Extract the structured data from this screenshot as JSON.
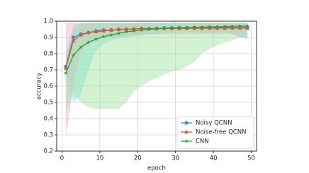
{
  "chart_data": {
    "type": "line",
    "xlabel": "epoch",
    "ylabel": "accuracy",
    "x": [
      1,
      3,
      5,
      7,
      9,
      11,
      13,
      15,
      17,
      19,
      21,
      23,
      25,
      27,
      29,
      31,
      33,
      35,
      37,
      39,
      41,
      43,
      45,
      47,
      49
    ],
    "series": [
      {
        "name": "Noisy QCNN",
        "color": "#3b8fd6",
        "marker": "circle",
        "band_color": "#7fe0ee",
        "values": [
          0.72,
          0.9,
          0.92,
          0.93,
          0.94,
          0.945,
          0.945,
          0.95,
          0.95,
          0.952,
          0.955,
          0.955,
          0.955,
          0.958,
          0.958,
          0.96,
          0.96,
          0.96,
          0.96,
          0.962,
          0.962,
          0.962,
          0.962,
          0.963,
          0.963
        ],
        "band_lower": [
          0.66,
          0.5,
          0.55,
          0.7,
          0.82,
          0.86,
          0.88,
          0.9,
          0.9,
          0.91,
          0.92,
          0.92,
          0.92,
          0.93,
          0.93,
          0.93,
          0.93,
          0.93,
          0.93,
          0.93,
          0.93,
          0.93,
          0.92,
          0.9,
          0.9
        ],
        "band_upper": [
          0.78,
          0.98,
          0.99,
          0.99,
          0.99,
          0.99,
          0.99,
          0.99,
          0.99,
          0.99,
          0.99,
          0.99,
          0.99,
          0.99,
          0.99,
          0.99,
          0.99,
          0.99,
          0.99,
          0.99,
          0.99,
          0.99,
          0.99,
          0.99,
          0.99
        ]
      },
      {
        "name": "Noise-free QCNN",
        "color": "#e8532a",
        "marker": "triangle",
        "band_color": "#f2a6c8",
        "values": [
          0.71,
          0.88,
          0.915,
          0.93,
          0.935,
          0.94,
          0.945,
          0.948,
          0.95,
          0.952,
          0.953,
          0.953,
          0.955,
          0.955,
          0.955,
          0.955,
          0.955,
          0.956,
          0.956,
          0.956,
          0.956,
          0.957,
          0.957,
          0.957,
          0.957
        ],
        "band_lower": [
          0.28,
          0.6,
          0.82,
          0.86,
          0.88,
          0.9,
          0.9,
          0.9,
          0.91,
          0.91,
          0.91,
          0.92,
          0.92,
          0.92,
          0.92,
          0.92,
          0.92,
          0.92,
          0.92,
          0.92,
          0.92,
          0.92,
          0.92,
          0.9,
          0.89
        ],
        "band_upper": [
          0.99,
          0.99,
          0.99,
          0.99,
          0.99,
          0.99,
          0.99,
          0.99,
          0.99,
          0.99,
          0.99,
          0.99,
          0.99,
          0.99,
          0.99,
          0.99,
          0.99,
          0.99,
          0.99,
          0.99,
          0.99,
          0.99,
          0.99,
          0.99,
          0.99
        ]
      },
      {
        "name": "CNN",
        "color": "#2ca02c",
        "marker": "star",
        "band_color": "#9be39b",
        "values": [
          0.68,
          0.79,
          0.84,
          0.87,
          0.89,
          0.905,
          0.915,
          0.925,
          0.935,
          0.94,
          0.945,
          0.95,
          0.953,
          0.955,
          0.958,
          0.96,
          0.96,
          0.962,
          0.963,
          0.965,
          0.965,
          0.967,
          0.968,
          0.97,
          0.97
        ],
        "band_lower": [
          0.45,
          0.55,
          0.5,
          0.47,
          0.46,
          0.46,
          0.46,
          0.46,
          0.5,
          0.57,
          0.6,
          0.63,
          0.65,
          0.67,
          0.69,
          0.7,
          0.72,
          0.75,
          0.8,
          0.83,
          0.85,
          0.87,
          0.88,
          0.9,
          0.9
        ],
        "band_upper": [
          0.8,
          0.95,
          0.98,
          0.99,
          0.99,
          0.99,
          0.99,
          0.99,
          0.99,
          0.99,
          0.99,
          0.99,
          0.99,
          0.99,
          0.99,
          0.99,
          0.99,
          0.99,
          0.99,
          0.99,
          0.99,
          0.99,
          0.99,
          0.99,
          0.99
        ]
      }
    ],
    "xlim": [
      -1.4,
      51.4
    ],
    "ylim": [
      0.2,
      1.0
    ],
    "xticks": [
      0,
      10,
      20,
      30,
      40,
      50
    ],
    "yticks": [
      0.2,
      0.3,
      0.4,
      0.5,
      0.6,
      0.7,
      0.8,
      0.9,
      {
        "value": 1.0,
        "label": "1.0"
      }
    ],
    "grid": true,
    "legend": "lower right"
  }
}
